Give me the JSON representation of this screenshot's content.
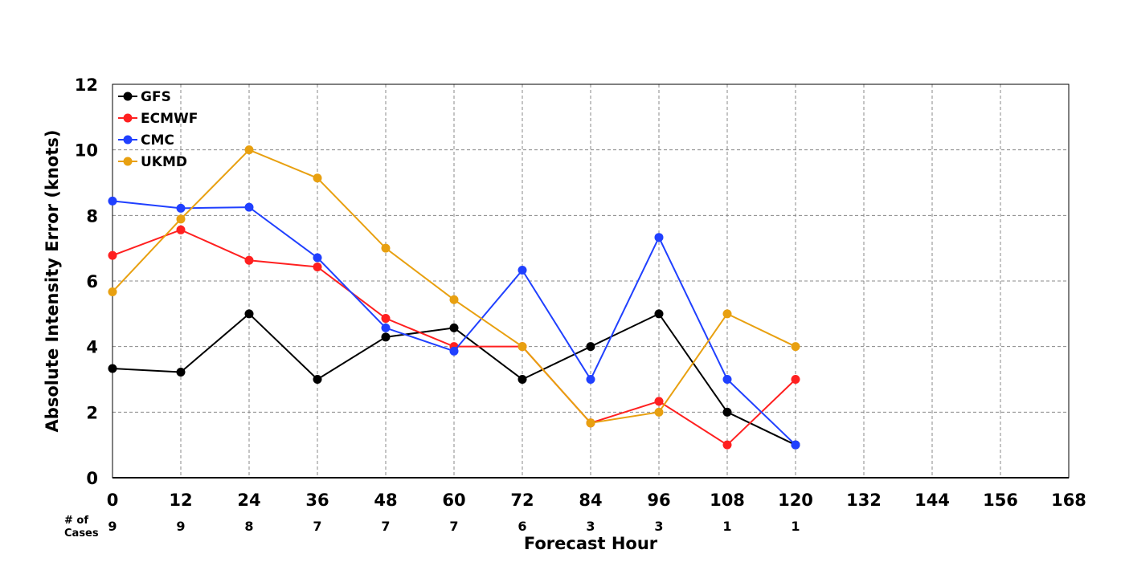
{
  "chart_data": {
    "type": "line",
    "title": "",
    "xlabel": "Forecast Hour",
    "ylabel": "Absolute Intensity Error (knots)",
    "xlim": [
      0,
      168
    ],
    "ylim": [
      0,
      12
    ],
    "x_ticks": [
      0,
      12,
      24,
      36,
      48,
      60,
      72,
      84,
      96,
      108,
      120,
      132,
      144,
      156,
      168
    ],
    "y_ticks": [
      0,
      2,
      4,
      6,
      8,
      10,
      12
    ],
    "grid": true,
    "legend_position": "top-left",
    "x": [
      0,
      12,
      24,
      36,
      48,
      60,
      72,
      84,
      96,
      108,
      120
    ],
    "series": [
      {
        "name": "GFS",
        "color": "#000000",
        "values": [
          3.33,
          3.22,
          5.0,
          3.0,
          4.29,
          4.57,
          3.0,
          4.0,
          5.0,
          2.0,
          1.0
        ]
      },
      {
        "name": "ECMWF",
        "color": "#ff2020",
        "values": [
          6.78,
          7.56,
          6.63,
          6.43,
          4.86,
          4.0,
          4.0,
          1.67,
          2.33,
          1.0,
          3.0
        ]
      },
      {
        "name": "CMC",
        "color": "#2040ff",
        "values": [
          8.44,
          8.22,
          8.25,
          6.71,
          4.57,
          3.86,
          6.33,
          3.0,
          7.33,
          3.0,
          1.0
        ]
      },
      {
        "name": "UKMD",
        "color": "#e8a010",
        "values": [
          5.67,
          7.89,
          10.0,
          9.14,
          7.0,
          5.43,
          4.0,
          1.67,
          2.0,
          5.0,
          4.0
        ]
      }
    ],
    "cases": {
      "label_line1": "# of",
      "label_line2": "Cases",
      "values": [
        "9",
        "9",
        "8",
        "7",
        "7",
        "7",
        "6",
        "3",
        "3",
        "1",
        "1"
      ]
    }
  }
}
